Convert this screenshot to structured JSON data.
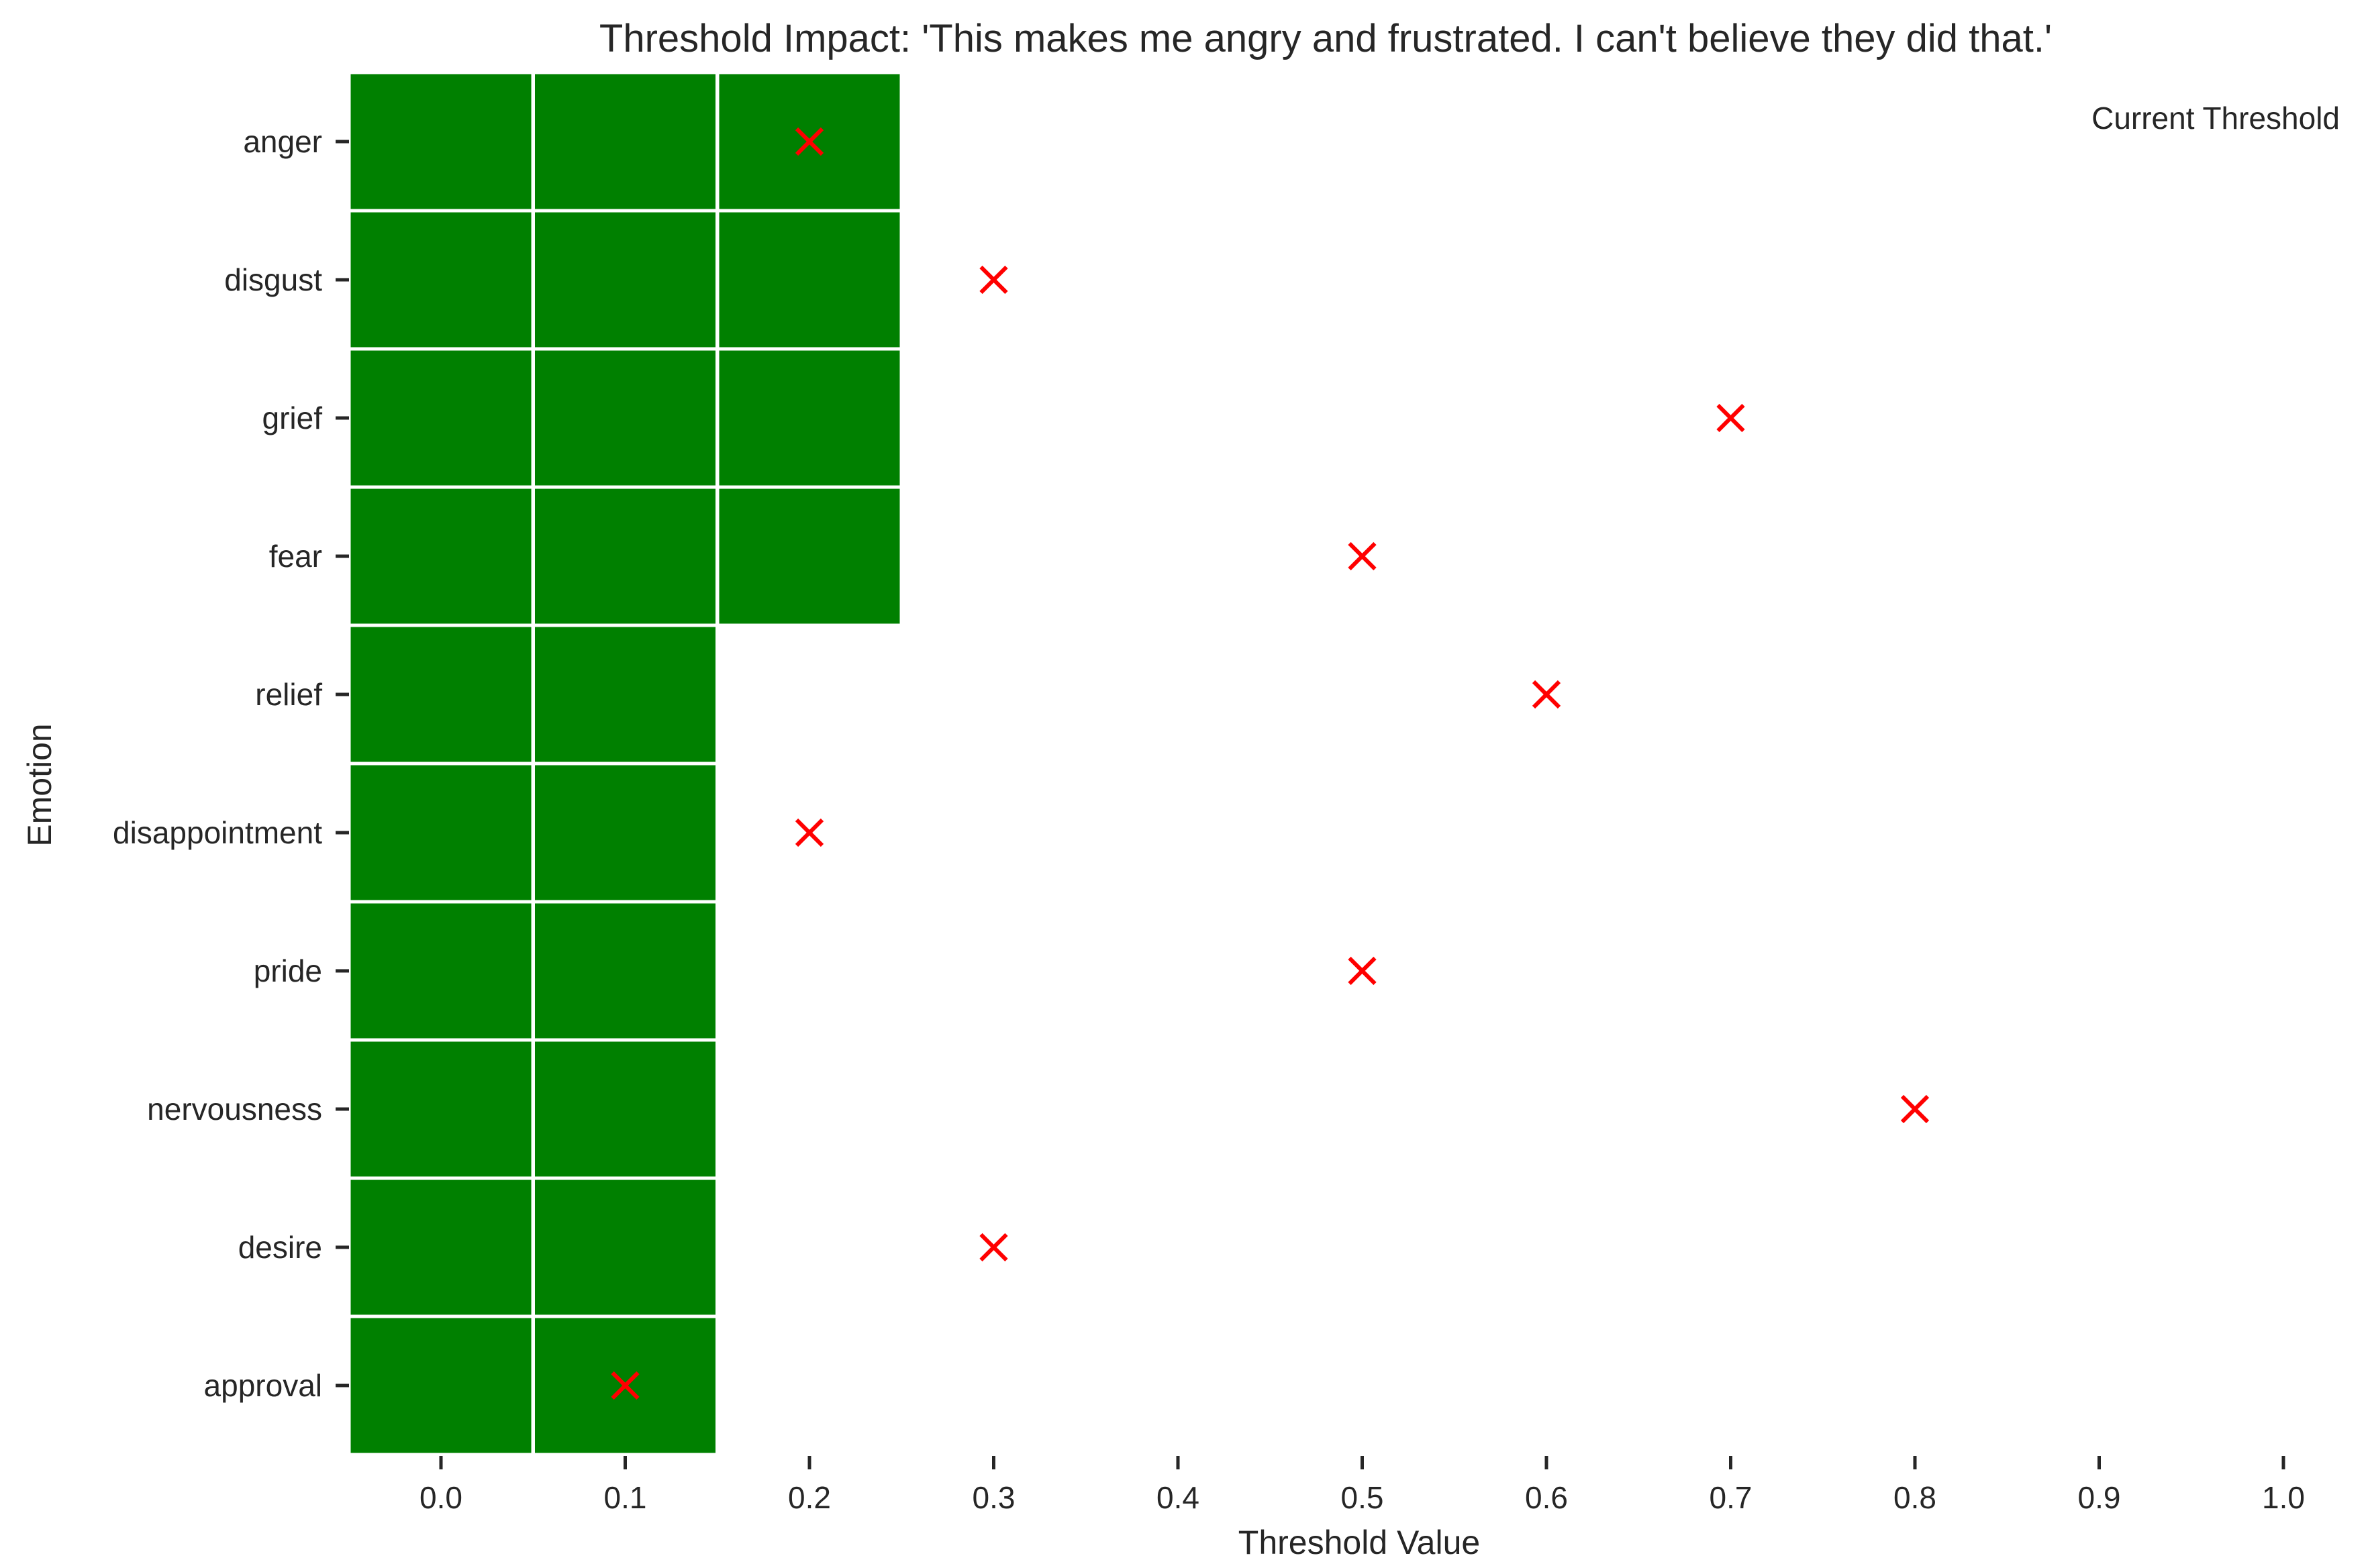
{
  "chart_data": {
    "type": "heatmap",
    "title": "Threshold Impact: 'This makes me angry and frustrated. I can't believe they did that.'",
    "xlabel": "Threshold Value",
    "ylabel": "Emotion",
    "x_ticks": [
      "0.0",
      "0.1",
      "0.2",
      "0.3",
      "0.4",
      "0.5",
      "0.6",
      "0.7",
      "0.8",
      "0.9",
      "1.0"
    ],
    "x_values": [
      0.0,
      0.1,
      0.2,
      0.3,
      0.4,
      0.5,
      0.6,
      0.7,
      0.8,
      0.9,
      1.0
    ],
    "emotions": [
      "anger",
      "disgust",
      "grief",
      "fear",
      "relief",
      "disappointment",
      "pride",
      "nervousness",
      "desire",
      "approval"
    ],
    "active_cells": [
      [
        0.0,
        0.1,
        0.2
      ],
      [
        0.0,
        0.1,
        0.2
      ],
      [
        0.0,
        0.1,
        0.2
      ],
      [
        0.0,
        0.1,
        0.2
      ],
      [
        0.0,
        0.1
      ],
      [
        0.0,
        0.1
      ],
      [
        0.0,
        0.1
      ],
      [
        0.0,
        0.1
      ],
      [
        0.0,
        0.1
      ],
      [
        0.0,
        0.1
      ]
    ],
    "current_thresholds": [
      0.2,
      0.3,
      0.7,
      0.5,
      0.6,
      0.2,
      0.5,
      0.8,
      0.3,
      0.1
    ],
    "legend": {
      "label": "Current Threshold",
      "placement": "top-right"
    },
    "colors": {
      "active": "#008000",
      "marker": "#ff0000",
      "text": "#262626"
    },
    "grid": false
  }
}
